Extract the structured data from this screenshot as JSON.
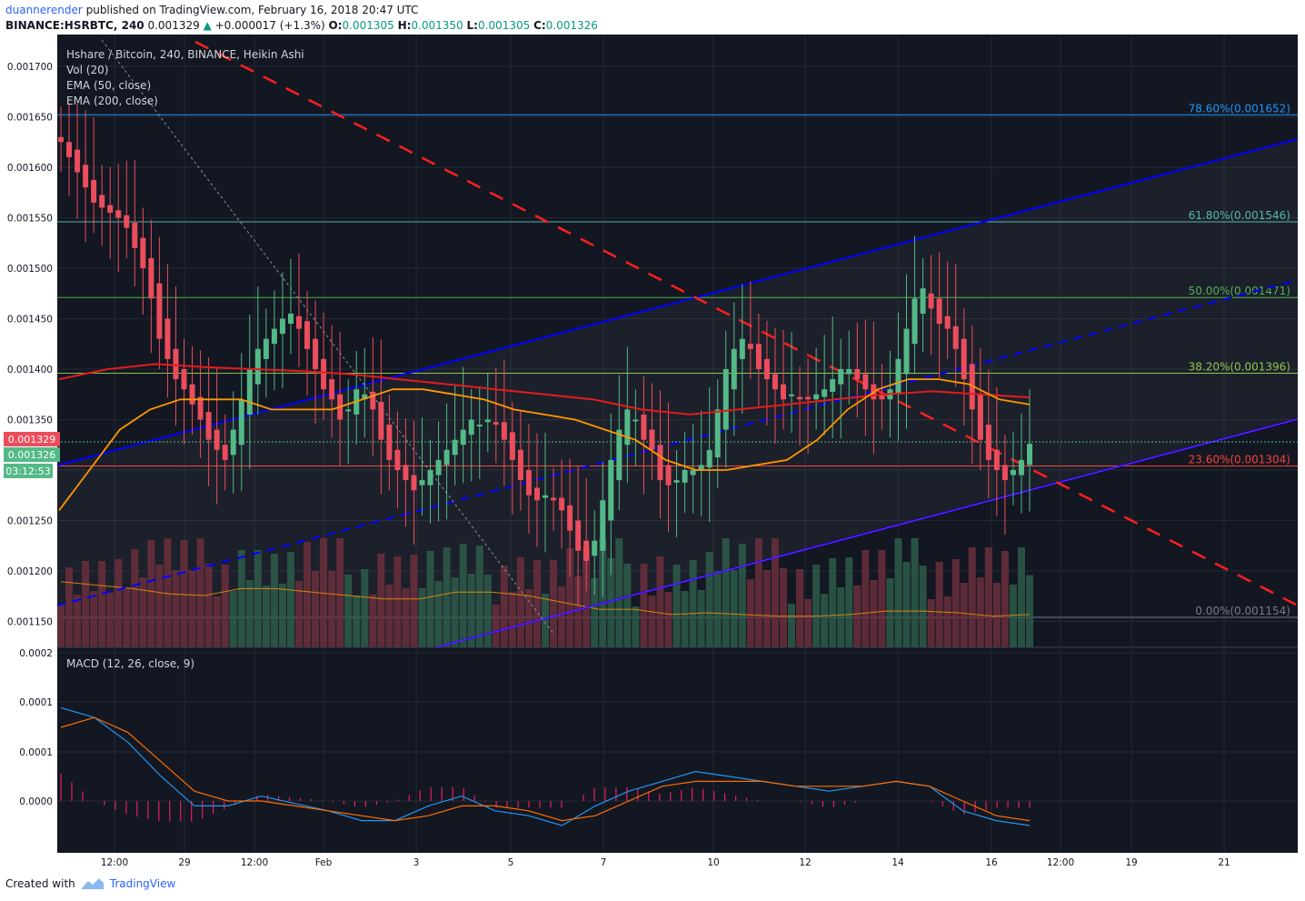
{
  "header": {
    "user": "duannerender",
    "published_text": "published on TradingView.com, February 16, 2018 20:47 UTC",
    "symbol": "BINANCE:HSRBTC, 240",
    "last": "0.001329",
    "change": "+0.000017 (+1.3%)",
    "o_label": "O:",
    "o_value": "0.001305",
    "h_label": "H:",
    "h_value": "0.001350",
    "l_label": "L:",
    "l_value": "0.001305",
    "c_label": "C:",
    "c_value": "0.001326"
  },
  "legend": [
    "Hshare / Bitcoin, 240, BINANCE, Heikin Ashi",
    "Vol (20)",
    "EMA (50, close)",
    "EMA (200, close)"
  ],
  "macd_label": "MACD (12, 26, close, 9)",
  "price_labels": {
    "last": "0.001329",
    "close": "0.001326",
    "countdown": "03:12:53"
  },
  "footer": {
    "created_with": "Created with",
    "brand": "TradingView"
  },
  "colors": {
    "up": "#53b987",
    "down": "#eb4d5c",
    "ema50": "#ff9800",
    "ema200": "#e31c1c",
    "trend": "#0000ff",
    "bg": "#131722"
  },
  "chart_data": [
    {
      "type": "candlestick",
      "title": "Hshare / Bitcoin, 240, BINANCE, Heikin Ashi",
      "y_ticks": [
        "0.001700",
        "0.001650",
        "0.001600",
        "0.001550",
        "0.001500",
        "0.001450",
        "0.001400",
        "0.001350",
        "0.001300",
        "0.001250",
        "0.001200",
        "0.001150"
      ],
      "ylim": [
        0.00112,
        0.00171
      ],
      "x_ticks": [
        "12:00",
        "29",
        "12:00",
        "Feb",
        "3",
        "5",
        "7",
        "10",
        "12",
        "14",
        "16",
        "12:00",
        "19",
        "21"
      ],
      "fibonacci": [
        {
          "label": "78.60%(0.001652)",
          "value": 0.001652,
          "color": "#2196f3"
        },
        {
          "label": "61.80%(0.001546)",
          "value": 0.001546,
          "color": "#4db6ac"
        },
        {
          "label": "50.00%(0.001471)",
          "value": 0.001471,
          "color": "#4caf50"
        },
        {
          "label": "38.20%(0.001396)",
          "value": 0.001396,
          "color": "#8bc34a"
        },
        {
          "label": "23.60%(0.001304)",
          "value": 0.001304,
          "color": "#f44336"
        },
        {
          "label": "0.00%(0.001154)",
          "value": 0.001154,
          "color": "#787b86"
        }
      ],
      "closes": [
        0.001625,
        0.00161,
        0.001595,
        0.00158,
        0.001565,
        0.00156,
        0.001555,
        0.00155,
        0.00154,
        0.00152,
        0.0015,
        0.00147,
        0.00143,
        0.00141,
        0.00139,
        0.00138,
        0.001365,
        0.00135,
        0.00133,
        0.00132,
        0.00131,
        0.00134,
        0.00137,
        0.0014,
        0.00142,
        0.00143,
        0.00144,
        0.00145,
        0.001455,
        0.00144,
        0.00142,
        0.0014,
        0.00138,
        0.00137,
        0.00135,
        0.00136,
        0.00138,
        0.001375,
        0.00136,
        0.00133,
        0.00131,
        0.0013,
        0.00129,
        0.00128,
        0.00129,
        0.0013,
        0.00131,
        0.00132,
        0.00133,
        0.00134,
        0.00135,
        0.001345,
        0.00135,
        0.001345,
        0.00133,
        0.00131,
        0.00129,
        0.001275,
        0.00127,
        0.001275,
        0.00127,
        0.00126,
        0.00124,
        0.00122,
        0.00121,
        0.00123,
        0.00127,
        0.00131,
        0.00134,
        0.00136,
        0.00135,
        0.00133,
        0.00132,
        0.00129,
        0.001285,
        0.00129,
        0.0013,
        0.0013,
        0.001305,
        0.00132,
        0.00136,
        0.0014,
        0.00142,
        0.00143,
        0.00142,
        0.0014,
        0.00139,
        0.00138,
        0.00137,
        0.001375,
        0.00137,
        0.00137,
        0.001375,
        0.00138,
        0.00139,
        0.0014,
        0.0014,
        0.00139,
        0.00138,
        0.00137,
        0.00137,
        0.00138,
        0.00141,
        0.00144,
        0.00147,
        0.00148,
        0.00146,
        0.001445,
        0.00144,
        0.00142,
        0.00139,
        0.00136,
        0.00133,
        0.00131,
        0.0013,
        0.00129,
        0.0013,
        0.00131,
        0.001326
      ],
      "ema50": [
        0.00126,
        0.0013,
        0.00134,
        0.00136,
        0.00137,
        0.00137,
        0.00137,
        0.00136,
        0.00136,
        0.00136,
        0.00137,
        0.00138,
        0.00138,
        0.001375,
        0.00137,
        0.00136,
        0.001355,
        0.00135,
        0.00134,
        0.00133,
        0.00131,
        0.0013,
        0.0013,
        0.001305,
        0.00131,
        0.00133,
        0.00136,
        0.00138,
        0.00139,
        0.00139,
        0.001385,
        0.00137,
        0.001365
      ],
      "ema200": [
        0.00139,
        0.0014,
        0.001405,
        0.001402,
        0.0014,
        0.001398,
        0.001395,
        0.00139,
        0.001385,
        0.00138,
        0.001375,
        0.00137,
        0.00136,
        0.001355,
        0.00136,
        0.001365,
        0.00137,
        0.001375,
        0.001378,
        0.001375,
        0.001372
      ],
      "volume_ma": [
        0.19,
        0.18,
        0.17,
        0.155,
        0.15,
        0.17,
        0.17,
        0.16,
        0.15,
        0.14,
        0.14,
        0.16,
        0.16,
        0.15,
        0.13,
        0.11,
        0.11,
        0.095,
        0.1,
        0.095,
        0.09,
        0.09,
        0.095,
        0.105,
        0.105,
        0.1,
        0.09,
        0.095
      ]
    },
    {
      "type": "line",
      "title": "MACD (12, 26, close, 9)",
      "y_ticks": [
        "0.0002",
        "0.0001",
        "0.0001",
        "0.0000"
      ],
      "macd": [
        0.00019,
        0.00017,
        0.00012,
        5e-05,
        -1e-05,
        -1e-05,
        1e-05,
        -5e-06,
        -2e-05,
        -4e-05,
        -4e-05,
        -1e-05,
        1e-05,
        -2e-05,
        -3e-05,
        -5e-05,
        -1e-05,
        2e-05,
        4e-05,
        6e-05,
        5e-05,
        4e-05,
        3e-05,
        2e-05,
        3e-05,
        4e-05,
        3e-05,
        -2e-05,
        -4e-05,
        -5e-05
      ],
      "signal": [
        0.00015,
        0.00017,
        0.00014,
        8e-05,
        2e-05,
        0.0,
        0.0,
        -1e-05,
        -2e-05,
        -3e-05,
        -4e-05,
        -3e-05,
        -1e-05,
        -1e-05,
        -2e-05,
        -4e-05,
        -3e-05,
        0.0,
        3e-05,
        4e-05,
        4e-05,
        4e-05,
        3e-05,
        3e-05,
        3e-05,
        4e-05,
        3e-05,
        0.0,
        -3e-05,
        -4e-05
      ]
    }
  ]
}
